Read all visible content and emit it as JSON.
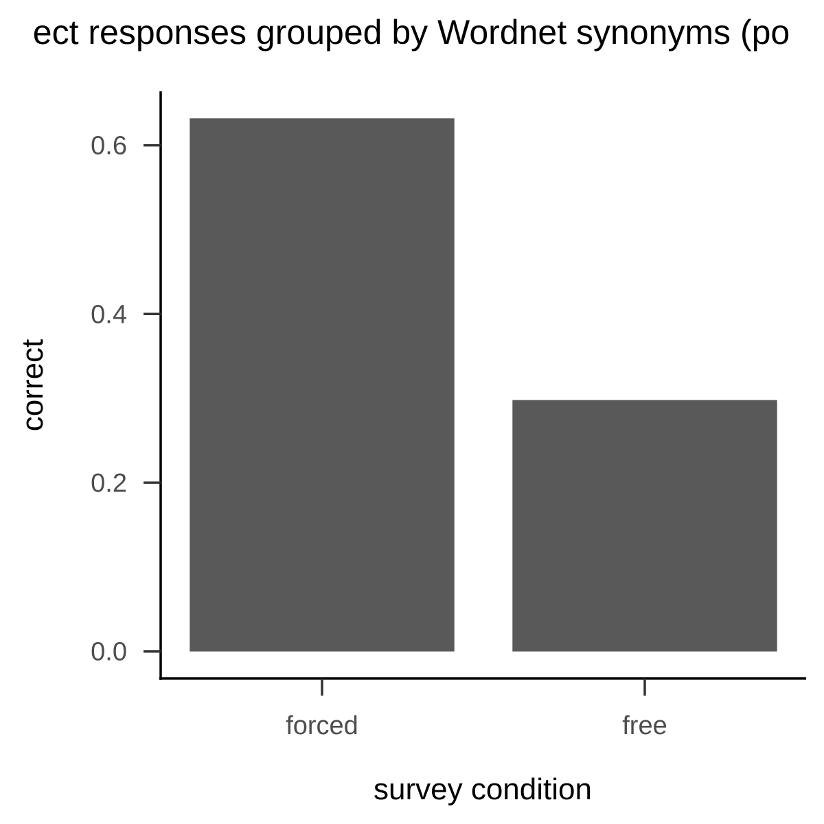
{
  "chart_data": {
    "type": "bar",
    "title": "ect responses grouped by Wordnet synonyms (po",
    "xlabel": "survey condition",
    "ylabel": "correct",
    "categories": [
      "forced",
      "free"
    ],
    "values": [
      0.632,
      0.298
    ],
    "ylim": [
      -0.032,
      0.664
    ],
    "yticks": [
      0.0,
      0.2,
      0.4,
      0.6
    ],
    "ytick_labels": [
      "0.0",
      "0.2",
      "0.4",
      "0.6"
    ],
    "grid": false,
    "legend": "none",
    "bar_color": "#595959"
  }
}
